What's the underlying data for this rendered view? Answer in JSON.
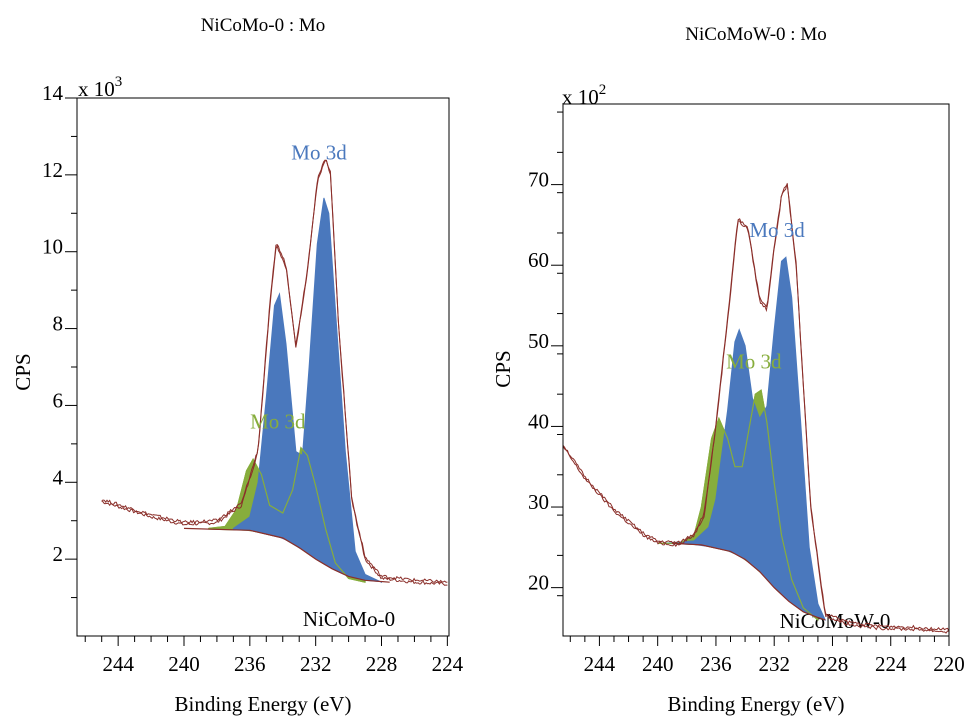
{
  "colors": {
    "envelope": "#8b2f2a",
    "peak_blue": "#4a78bd",
    "peak_green": "#87ad3c",
    "axis": "#000000"
  },
  "chart_data": [
    {
      "type": "line",
      "title": "NiCoMo-0 : Mo",
      "xlabel": "Binding Energy (eV)",
      "ylabel": "CPS",
      "y_multiplier": "x 10",
      "y_multiplier_exponent": "3",
      "sample_label": "NiCoMo-0",
      "xlim": [
        246.5,
        223.9
      ],
      "ylim": [
        0,
        14
      ],
      "x_ticks": [
        244,
        240,
        236,
        232,
        228,
        224
      ],
      "y_ticks": [
        2,
        4,
        6,
        8,
        10,
        12,
        14
      ],
      "peak_labels": [
        {
          "text": "Mo 3d",
          "color": "blue",
          "x": 231.8,
          "y": 12.4
        },
        {
          "text": "Mo 3d",
          "color": "green",
          "x": 234.3,
          "y": 5.4
        }
      ],
      "series": [
        {
          "name": "envelope",
          "color": "envelope",
          "x": [
            245.0,
            242.0,
            240.0,
            238.0,
            236.5,
            235.5,
            234.8,
            234.4,
            233.8,
            233.2,
            232.5,
            231.9,
            231.4,
            231.1,
            230.6,
            229.8,
            229.0,
            228.0,
            226.0,
            224.0
          ],
          "y": [
            3.5,
            3.1,
            2.9,
            2.95,
            3.4,
            4.8,
            8.5,
            10.2,
            9.6,
            7.5,
            9.5,
            11.8,
            12.4,
            12.0,
            8.0,
            3.5,
            2.0,
            1.5,
            1.4,
            1.35
          ]
        },
        {
          "name": "background",
          "color": "envelope",
          "x": [
            240.0,
            236.0,
            234.0,
            233.0,
            232.0,
            231.0,
            230.0,
            229.0,
            227.5
          ],
          "y": [
            2.8,
            2.75,
            2.55,
            2.3,
            2.0,
            1.75,
            1.55,
            1.45,
            1.4
          ]
        },
        {
          "name": "Mo 3d (blue)",
          "color": "peak_blue",
          "x": [
            237.0,
            236.0,
            235.5,
            235.0,
            234.5,
            234.2,
            233.8,
            233.2,
            232.8,
            232.4,
            231.9,
            231.5,
            231.2,
            230.8,
            230.2,
            229.6,
            229.0,
            228.0
          ],
          "y": [
            2.8,
            3.1,
            4.0,
            6.2,
            8.6,
            8.9,
            7.6,
            4.8,
            4.7,
            7.0,
            10.2,
            11.4,
            11.0,
            8.5,
            4.8,
            2.2,
            1.6,
            1.4
          ]
        },
        {
          "name": "Mo 3d (green)",
          "color": "peak_green",
          "x": [
            238.5,
            237.5,
            236.8,
            236.2,
            235.8,
            235.3,
            234.8,
            234.0,
            233.4,
            232.9,
            232.5,
            232.0,
            231.4,
            230.8,
            230.0,
            229.0
          ],
          "y": [
            2.8,
            2.85,
            3.3,
            4.3,
            4.6,
            4.2,
            3.4,
            3.2,
            3.8,
            4.9,
            4.7,
            3.9,
            2.8,
            1.9,
            1.5,
            1.4
          ]
        }
      ]
    },
    {
      "type": "line",
      "title": "NiCoMoW-0 : Mo",
      "xlabel": "Binding Energy (eV)",
      "ylabel": "CPS",
      "y_multiplier": "x 10",
      "y_multiplier_exponent": "2",
      "sample_label": "NiCoMoW-0",
      "xlim": [
        246.5,
        220
      ],
      "ylim": [
        14,
        80
      ],
      "x_ticks": [
        244,
        240,
        236,
        232,
        228,
        224,
        220
      ],
      "y_ticks": [
        20,
        30,
        40,
        50,
        60,
        70
      ],
      "peak_labels": [
        {
          "text": "Mo 3d",
          "color": "blue",
          "x": 231.8,
          "y": 63.5
        },
        {
          "text": "Mo 3d",
          "color": "green",
          "x": 233.4,
          "y": 47.2
        }
      ],
      "series": [
        {
          "name": "envelope",
          "color": "envelope",
          "x": [
            246.5,
            245.0,
            243.0,
            241.0,
            240.0,
            238.5,
            237.5,
            236.8,
            236.0,
            235.0,
            234.5,
            233.8,
            233.0,
            232.5,
            232.0,
            231.5,
            231.1,
            230.5,
            229.5,
            228.5,
            227.0,
            225.0,
            222.0,
            220.0
          ],
          "y": [
            37.5,
            33.5,
            29.5,
            26.5,
            25.5,
            25.3,
            26.5,
            29.0,
            40.0,
            56.5,
            65.5,
            64.5,
            55.5,
            54.5,
            62.0,
            68.5,
            70.0,
            60.0,
            30.0,
            16.5,
            15.5,
            15.0,
            14.8,
            14.5
          ]
        },
        {
          "name": "background",
          "color": "envelope",
          "x": [
            239.0,
            237.0,
            235.0,
            234.0,
            233.0,
            232.0,
            231.0,
            230.0,
            229.0,
            228.5
          ],
          "y": [
            25.5,
            25.3,
            24.5,
            23.5,
            22.0,
            20.0,
            18.3,
            17.0,
            16.3,
            16.0
          ]
        },
        {
          "name": "Mo 3d (blue)",
          "color": "peak_blue",
          "x": [
            239.5,
            237.5,
            236.5,
            236.0,
            235.2,
            234.7,
            234.4,
            234.0,
            233.5,
            233.0,
            232.5,
            232.0,
            231.5,
            231.2,
            230.8,
            230.2,
            229.6,
            229.0,
            228.5
          ],
          "y": [
            25.5,
            25.8,
            27.5,
            31.0,
            42.0,
            50.5,
            52.0,
            50.0,
            43.5,
            41.0,
            42.5,
            52.0,
            60.5,
            61.0,
            56.0,
            41.0,
            25.0,
            18.0,
            16.0
          ]
        },
        {
          "name": "Mo 3d (green)",
          "color": "peak_green",
          "x": [
            240.0,
            238.5,
            237.5,
            237.0,
            236.3,
            235.8,
            235.2,
            234.7,
            234.2,
            233.8,
            233.3,
            232.9,
            232.5,
            232.0,
            231.5,
            230.8,
            230.0,
            229.0
          ],
          "y": [
            25.5,
            25.5,
            26.5,
            30.0,
            38.5,
            41.0,
            38.5,
            35.0,
            35.0,
            39.0,
            44.0,
            44.5,
            40.5,
            33.0,
            26.5,
            21.0,
            17.5,
            16.0
          ]
        }
      ]
    }
  ]
}
